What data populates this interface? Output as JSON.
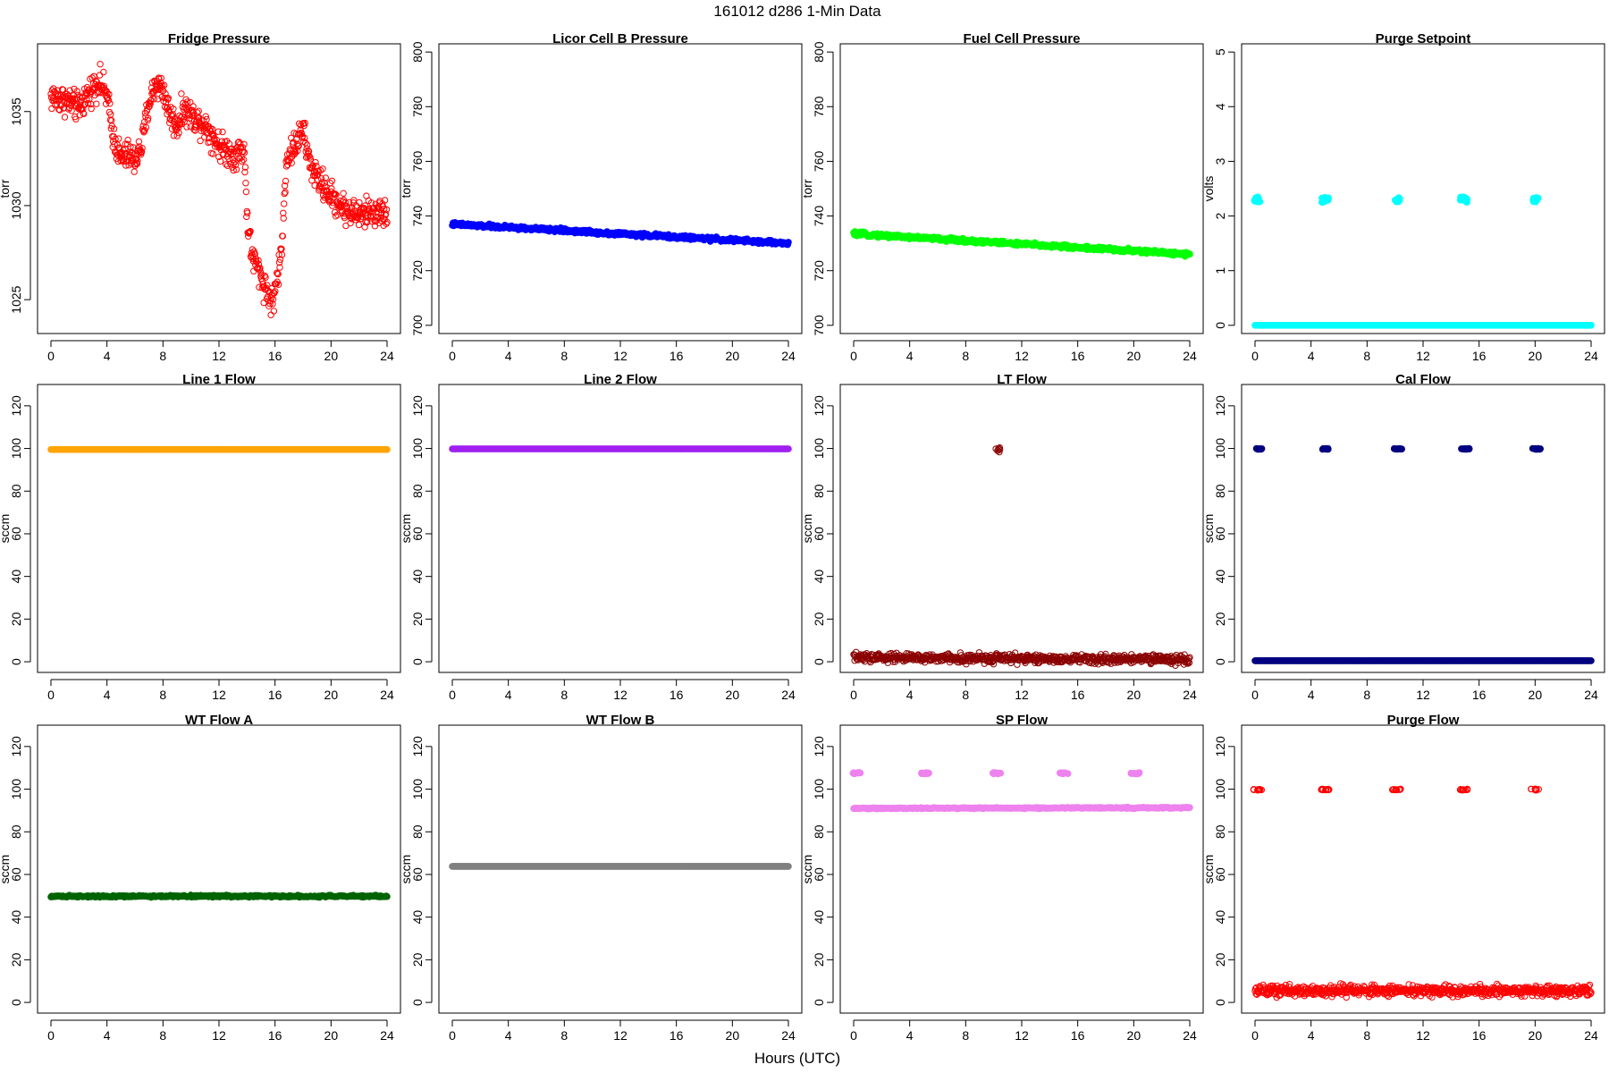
{
  "figure": {
    "title": "161012   d286   1-Min Data",
    "xlabel": "Hours (UTC)"
  },
  "chart_data": [
    {
      "type": "scatter",
      "title": "Fridge Pressure",
      "ylabel": "torr",
      "color": "#ff0000",
      "xlim": [
        0,
        24
      ],
      "ylim": [
        1023.2,
        1038.6
      ],
      "xticks": [
        0,
        4,
        8,
        12,
        16,
        20,
        24
      ],
      "yticks": [
        1025,
        1030,
        1035
      ],
      "marker": "open-circle",
      "series": [
        {
          "kind": "noisy",
          "points": [
            [
              0,
              1035.8
            ],
            [
              1,
              1035.6
            ],
            [
              2,
              1035.2
            ],
            [
              3,
              1036.3
            ],
            [
              3.5,
              1036.6
            ],
            [
              4,
              1035.8
            ],
            [
              4.5,
              1033.5
            ],
            [
              5,
              1032.5
            ],
            [
              5.5,
              1032.7
            ],
            [
              6,
              1032.4
            ],
            [
              6.5,
              1033.2
            ],
            [
              7,
              1035.5
            ],
            [
              7.5,
              1036.5
            ],
            [
              8,
              1036.2
            ],
            [
              8.5,
              1034.8
            ],
            [
              9,
              1034.2
            ],
            [
              9.5,
              1035.2
            ],
            [
              10,
              1034.8
            ],
            [
              11,
              1034.3
            ],
            [
              12,
              1033.2
            ],
            [
              13,
              1032.7
            ],
            [
              13.8,
              1033.0
            ],
            [
              14.0,
              1029.5
            ],
            [
              14.3,
              1027.5
            ],
            [
              15,
              1026.2
            ],
            [
              15.8,
              1024.8
            ],
            [
              16.2,
              1026.3
            ],
            [
              16.5,
              1027.8
            ],
            [
              16.8,
              1032.5
            ],
            [
              17.3,
              1033.0
            ],
            [
              17.6,
              1033.5
            ],
            [
              18,
              1034.0
            ],
            [
              18.5,
              1032.2
            ],
            [
              19,
              1031.5
            ],
            [
              20,
              1030.5
            ],
            [
              21,
              1029.8
            ],
            [
              22,
              1029.5
            ],
            [
              23,
              1029.7
            ],
            [
              24,
              1029.5
            ]
          ],
          "spread": 0.55,
          "count": 800
        }
      ]
    },
    {
      "type": "scatter",
      "title": "Licor Cell B Pressure",
      "ylabel": "torr",
      "color": "#0000ff",
      "xlim": [
        0,
        24
      ],
      "ylim": [
        697,
        803
      ],
      "xticks": [
        0,
        4,
        8,
        12,
        16,
        20,
        24
      ],
      "yticks": [
        700,
        720,
        740,
        760,
        780,
        800
      ],
      "marker": "filled",
      "series": [
        {
          "kind": "band",
          "points": [
            [
              0,
              737
            ],
            [
              24,
              730
            ]
          ],
          "spread": 0.5,
          "count": 500
        }
      ]
    },
    {
      "type": "scatter",
      "title": "Fuel Cell Pressure",
      "ylabel": "torr",
      "color": "#00ff00",
      "xlim": [
        0,
        24
      ],
      "ylim": [
        697,
        803
      ],
      "xticks": [
        0,
        4,
        8,
        12,
        16,
        20,
        24
      ],
      "yticks": [
        700,
        720,
        740,
        760,
        780,
        800
      ],
      "marker": "filled",
      "series": [
        {
          "kind": "band",
          "points": [
            [
              0,
              733.5
            ],
            [
              24,
              726
            ]
          ],
          "spread": 0.5,
          "count": 500
        }
      ]
    },
    {
      "type": "scatter",
      "title": "Purge Setpoint",
      "ylabel": "volts",
      "color": "#00ffff",
      "xlim": [
        0,
        24
      ],
      "ylim": [
        -0.15,
        5.15
      ],
      "xticks": [
        0,
        4,
        8,
        12,
        16,
        20,
        24
      ],
      "yticks": [
        0,
        1,
        2,
        3,
        4,
        5
      ],
      "marker": "filled",
      "series": [
        {
          "kind": "band",
          "points": [
            [
              0,
              0
            ],
            [
              24,
              0
            ]
          ],
          "spread": 0.0,
          "count": 400
        },
        {
          "kind": "clusters",
          "centers": [
            0.1,
            5.0,
            10.1,
            14.9,
            20.0
          ],
          "y": 2.3,
          "width": 0.5,
          "spread": 0.05,
          "count": 12
        }
      ]
    },
    {
      "type": "scatter",
      "title": "Line 1 Flow",
      "ylabel": "sccm",
      "color": "#ffa500",
      "xlim": [
        0,
        24
      ],
      "ylim": [
        -5,
        130
      ],
      "xticks": [
        0,
        4,
        8,
        12,
        16,
        20,
        24
      ],
      "yticks": [
        0,
        20,
        40,
        60,
        80,
        100,
        120
      ],
      "marker": "filled",
      "series": [
        {
          "kind": "band",
          "points": [
            [
              0,
              99.5
            ],
            [
              24,
              99.5
            ]
          ],
          "spread": 0.0,
          "count": 400
        }
      ]
    },
    {
      "type": "scatter",
      "title": "Line 2 Flow",
      "ylabel": "sccm",
      "color": "#a020f0",
      "xlim": [
        0,
        24
      ],
      "ylim": [
        -5,
        130
      ],
      "xticks": [
        0,
        4,
        8,
        12,
        16,
        20,
        24
      ],
      "yticks": [
        0,
        20,
        40,
        60,
        80,
        100,
        120
      ],
      "marker": "filled",
      "series": [
        {
          "kind": "band",
          "points": [
            [
              0,
              99.8
            ],
            [
              24,
              99.8
            ]
          ],
          "spread": 0.0,
          "count": 400
        }
      ]
    },
    {
      "type": "scatter",
      "title": "LT Flow",
      "ylabel": "sccm",
      "color": "#8b0000",
      "xlim": [
        0,
        24
      ],
      "ylim": [
        -5,
        130
      ],
      "xticks": [
        0,
        4,
        8,
        12,
        16,
        20,
        24
      ],
      "yticks": [
        0,
        20,
        40,
        60,
        80,
        100,
        120
      ],
      "marker": "open-circle",
      "series": [
        {
          "kind": "noisy",
          "points": [
            [
              0,
              2
            ],
            [
              24,
              1
            ]
          ],
          "spread": 1.5,
          "count": 700
        },
        {
          "kind": "clusters",
          "centers": [
            10.3
          ],
          "y": 99,
          "width": 0.3,
          "spread": 1.5,
          "count": 8
        }
      ]
    },
    {
      "type": "scatter",
      "title": "Cal Flow",
      "ylabel": "sccm",
      "color": "#000080",
      "xlim": [
        0,
        24
      ],
      "ylim": [
        -5,
        130
      ],
      "xticks": [
        0,
        4,
        8,
        12,
        16,
        20,
        24
      ],
      "yticks": [
        0,
        20,
        40,
        60,
        80,
        100,
        120
      ],
      "marker": "filled",
      "series": [
        {
          "kind": "band",
          "points": [
            [
              0,
              0.5
            ],
            [
              24,
              0.5
            ]
          ],
          "spread": 0.0,
          "count": 400
        },
        {
          "kind": "clusters",
          "centers": [
            0.2,
            5.1,
            10.2,
            15.0,
            20.1
          ],
          "y": 99.8,
          "width": 0.6,
          "spread": 0.2,
          "count": 14
        }
      ]
    },
    {
      "type": "scatter",
      "title": "WT Flow A",
      "ylabel": "sccm",
      "color": "#006400",
      "xlim": [
        0,
        24
      ],
      "ylim": [
        -5,
        130
      ],
      "xticks": [
        0,
        4,
        8,
        12,
        16,
        20,
        24
      ],
      "yticks": [
        0,
        20,
        40,
        60,
        80,
        100,
        120
      ],
      "marker": "filled",
      "series": [
        {
          "kind": "band",
          "points": [
            [
              0,
              49.8
            ],
            [
              24,
              49.8
            ]
          ],
          "spread": 0.3,
          "count": 400
        }
      ]
    },
    {
      "type": "scatter",
      "title": "WT Flow B",
      "ylabel": "sccm",
      "color": "#808080",
      "xlim": [
        0,
        24
      ],
      "ylim": [
        -5,
        130
      ],
      "xticks": [
        0,
        4,
        8,
        12,
        16,
        20,
        24
      ],
      "yticks": [
        0,
        20,
        40,
        60,
        80,
        100,
        120
      ],
      "marker": "filled",
      "series": [
        {
          "kind": "band",
          "points": [
            [
              0,
              63.8
            ],
            [
              24,
              63.8
            ]
          ],
          "spread": 0.0,
          "count": 400
        }
      ]
    },
    {
      "type": "scatter",
      "title": "SP Flow",
      "ylabel": "sccm",
      "color": "#ee82ee",
      "xlim": [
        0,
        24
      ],
      "ylim": [
        -5,
        130
      ],
      "xticks": [
        0,
        4,
        8,
        12,
        16,
        20,
        24
      ],
      "yticks": [
        0,
        20,
        40,
        60,
        80,
        100,
        120
      ],
      "marker": "filled",
      "series": [
        {
          "kind": "band",
          "points": [
            [
              0,
              91
            ],
            [
              24,
              91.3
            ]
          ],
          "spread": 0.2,
          "count": 400
        },
        {
          "kind": "clusters",
          "centers": [
            0.2,
            5.1,
            10.2,
            15.0,
            20.1
          ],
          "y": 107.5,
          "width": 0.6,
          "spread": 0.3,
          "count": 14
        }
      ]
    },
    {
      "type": "scatter",
      "title": "Purge Flow",
      "ylabel": "sccm",
      "color": "#ff0000",
      "xlim": [
        0,
        24
      ],
      "ylim": [
        -5,
        130
      ],
      "xticks": [
        0,
        4,
        8,
        12,
        16,
        20,
        24
      ],
      "yticks": [
        0,
        20,
        40,
        60,
        80,
        100,
        120
      ],
      "marker": "open-circle",
      "series": [
        {
          "kind": "noisy",
          "points": [
            [
              0,
              5.5
            ],
            [
              24,
              5.5
            ]
          ],
          "spread": 1.8,
          "count": 700
        },
        {
          "kind": "clusters",
          "centers": [
            0.2,
            5.0,
            10.1,
            14.9,
            20.0
          ],
          "y": 99.8,
          "width": 0.6,
          "spread": 0.3,
          "count": 12
        }
      ]
    }
  ]
}
